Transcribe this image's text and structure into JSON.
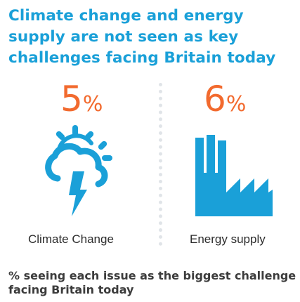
{
  "title": "Climate change and energy supply are not seen as key challenges facing Britain today",
  "colors": {
    "accent": "#1aa0d8",
    "stat": "#f26a2e"
  },
  "items": [
    {
      "value": "5",
      "unit": "%",
      "label": "Climate Change",
      "icon": "storm-cloud-icon"
    },
    {
      "value": "6",
      "unit": "%",
      "label": "Energy supply",
      "icon": "factory-icon"
    }
  ],
  "footnote": "% seeing each issue as the biggest challenge facing Britain today"
}
